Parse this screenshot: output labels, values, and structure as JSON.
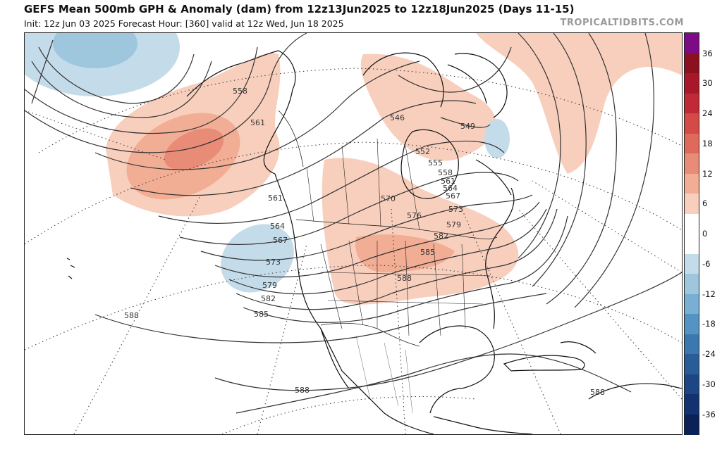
{
  "header": {
    "title": "GEFS Mean 500mb GPH & Anomaly (dam) from 12z13Jun2025 to 12z18Jun2025 (Days 11-15)",
    "subtitle": "Init: 12z Jun 03 2025   Forecast Hour: [360]   valid at 12z Wed, Jun 18 2025",
    "brand": "TROPICALTIDBITS.COM"
  },
  "colorbar": {
    "ticks": [
      "36",
      "30",
      "24",
      "18",
      "12",
      "6",
      "0",
      "-6",
      "-12",
      "-18",
      "-24",
      "-30",
      "-36"
    ],
    "colors": [
      "#7d0b85",
      "#8b1020",
      "#a8182a",
      "#c02a37",
      "#d34a46",
      "#df6a5c",
      "#e98c77",
      "#f2ad95",
      "#f8cfbd",
      "#ffffff",
      "#ffffff",
      "#c4dcea",
      "#9ec7de",
      "#78afd2",
      "#5594c2",
      "#3c78b0",
      "#295d9a",
      "#1c4784",
      "#123370",
      "#0b2258"
    ]
  },
  "contour_labels": [
    {
      "text": "558"
    },
    {
      "text": "561"
    },
    {
      "text": "561"
    },
    {
      "text": "546"
    },
    {
      "text": "549"
    },
    {
      "text": "552"
    },
    {
      "text": "555"
    },
    {
      "text": "558"
    },
    {
      "text": "561"
    },
    {
      "text": "564"
    },
    {
      "text": "567"
    },
    {
      "text": "570"
    },
    {
      "text": "573"
    },
    {
      "text": "576"
    },
    {
      "text": "579"
    },
    {
      "text": "582"
    },
    {
      "text": "585"
    },
    {
      "text": "588"
    },
    {
      "text": "564"
    },
    {
      "text": "567"
    },
    {
      "text": "573"
    },
    {
      "text": "579"
    },
    {
      "text": "582"
    },
    {
      "text": "585"
    },
    {
      "text": "588"
    },
    {
      "text": "588"
    },
    {
      "text": "588"
    }
  ]
}
